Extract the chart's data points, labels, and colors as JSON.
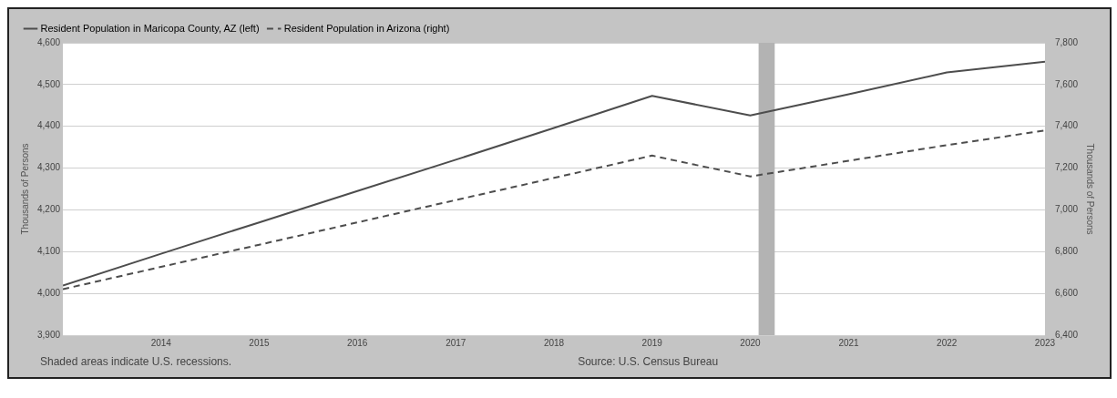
{
  "chart_data": {
    "type": "line",
    "x": [
      "2013-01-01",
      "2014-01-01",
      "2015-01-01",
      "2016-01-01",
      "2017-01-01",
      "2018-01-01",
      "2019-01-01",
      "2020-01-01",
      "2021-01-01",
      "2022-01-01",
      "2023-01-01"
    ],
    "series": [
      {
        "name": "Resident Population in Maricopa County, AZ (left)",
        "color": "#4d4d4d",
        "line_style": "solid",
        "values": [
          4019,
          4095,
          4170,
          4245,
          4320,
          4396,
          4473,
          4426,
          4477,
          4529,
          4555
        ]
      },
      {
        "name": "Resident Population in Arizona (right)",
        "color": "#4d4d4d",
        "line_style": "dashed",
        "axis": "y2",
        "values": [
          6620,
          6727,
          6833,
          6940,
          7047,
          7153,
          7260,
          7160,
          7235,
          7310,
          7380
        ]
      }
    ],
    "ylabel": "Thousands of Persons",
    "y2label": "Thousands of Persons",
    "xlim": [
      "2013-01-01",
      "2023-01-01"
    ],
    "xticks": [
      "2014",
      "2015",
      "2016",
      "2017",
      "2018",
      "2019",
      "2020",
      "2021",
      "2022",
      "2023"
    ],
    "ylim": [
      3900,
      4600
    ],
    "yticks": [
      {
        "value": 3900,
        "label": "3,900"
      },
      {
        "value": 4000,
        "label": "4,000"
      },
      {
        "value": 4100,
        "label": "4,100"
      },
      {
        "value": 4200,
        "label": "4,200"
      },
      {
        "value": 4300,
        "label": "4,300"
      },
      {
        "value": 4400,
        "label": "4,400"
      },
      {
        "value": 4500,
        "label": "4,500"
      },
      {
        "value": 4600,
        "label": "4,600"
      }
    ],
    "y2lim": [
      6400,
      7800
    ],
    "y2ticks": [
      {
        "value": 6400,
        "label": "6,400"
      },
      {
        "value": 6600,
        "label": "6,600"
      },
      {
        "value": 6800,
        "label": "6,800"
      },
      {
        "value": 7000,
        "label": "7,000"
      },
      {
        "value": 7200,
        "label": "7,200"
      },
      {
        "value": 7400,
        "label": "7,400"
      },
      {
        "value": 7600,
        "label": "7,600"
      },
      {
        "value": 7800,
        "label": "7,800"
      }
    ],
    "bands": [
      {
        "axis": "x",
        "from": "2020-02",
        "to": "2020-04",
        "color": "#b3b3b3"
      }
    ],
    "grid": "y",
    "legend": "top left",
    "marker": "none",
    "annotations": [
      "Shaded areas indicate U.S. recessions.",
      "Source: U.S. Census Bureau"
    ]
  }
}
